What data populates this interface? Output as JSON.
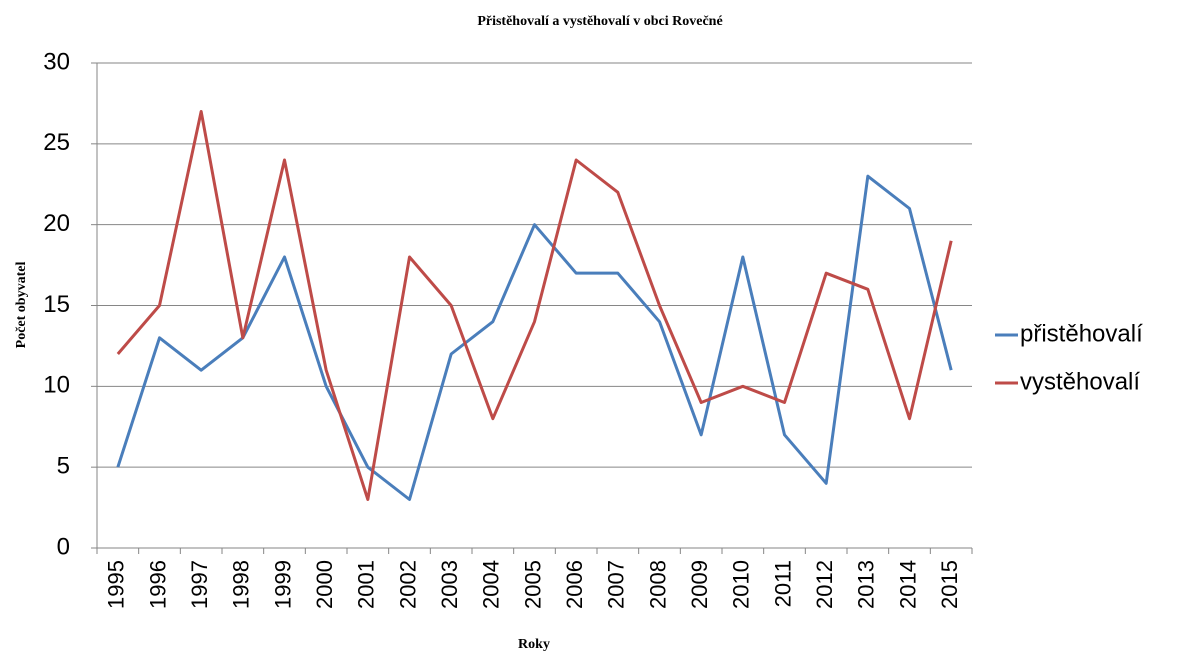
{
  "chart_data": {
    "type": "line",
    "title": "Přistěhovalí a vystěhovalí v obci Rovečné",
    "x_label": "Roky",
    "y_label": "Počet obyvatel",
    "categories": [
      "1995",
      "1996",
      "1997",
      "1998",
      "1999",
      "2000",
      "2001",
      "2002",
      "2003",
      "2004",
      "2005",
      "2006",
      "2007",
      "2008",
      "2009",
      "2010",
      "2011",
      "2012",
      "2013",
      "2014",
      "2015"
    ],
    "series": [
      {
        "name": "přistěhovalí",
        "color": "#4a7ebb",
        "values": [
          5,
          13,
          11,
          13,
          18,
          10,
          5,
          3,
          12,
          14,
          20,
          17,
          17,
          14,
          7,
          18,
          7,
          4,
          23,
          21,
          11
        ]
      },
      {
        "name": "vystěhovalí",
        "color": "#be4b48",
        "values": [
          12,
          15,
          27,
          13,
          24,
          11,
          3,
          18,
          15,
          8,
          14,
          24,
          22,
          15,
          9,
          10,
          9,
          17,
          16,
          8,
          19
        ]
      }
    ],
    "ylim": [
      0,
      30
    ],
    "yticks": [
      0,
      5,
      10,
      15,
      20,
      25,
      30
    ],
    "grid": true,
    "legend": "right"
  }
}
